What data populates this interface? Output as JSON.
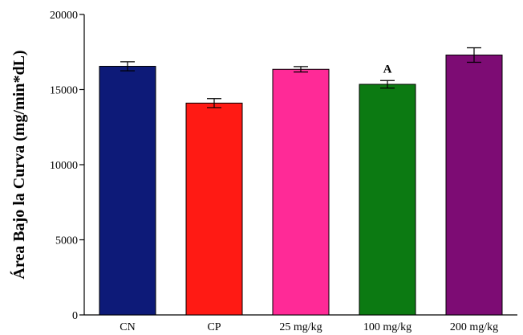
{
  "chart_data": {
    "type": "bar",
    "title": "",
    "xlabel": "",
    "ylabel": "Área Bajo la Curva (mg/min*dL)",
    "ylim": [
      0,
      20000
    ],
    "yticks": [
      "0",
      "5000",
      "10000",
      "15000",
      "20000"
    ],
    "ytick_values": [
      0,
      5000,
      10000,
      15000,
      20000
    ],
    "grid": false,
    "legend": "none",
    "categories": [
      "CN",
      "CP",
      "25 mg/kg",
      "100 mg/kg",
      "200 mg/kg"
    ],
    "values": [
      16550,
      14100,
      16350,
      15350,
      17300
    ],
    "errors": [
      300,
      300,
      180,
      250,
      480
    ],
    "colors": [
      "#0d1a78",
      "#ff1a14",
      "#ff2a97",
      "#0c7a12",
      "#7d0c74"
    ],
    "annotations": [
      {
        "category": "100 mg/kg",
        "text": "A"
      }
    ]
  }
}
